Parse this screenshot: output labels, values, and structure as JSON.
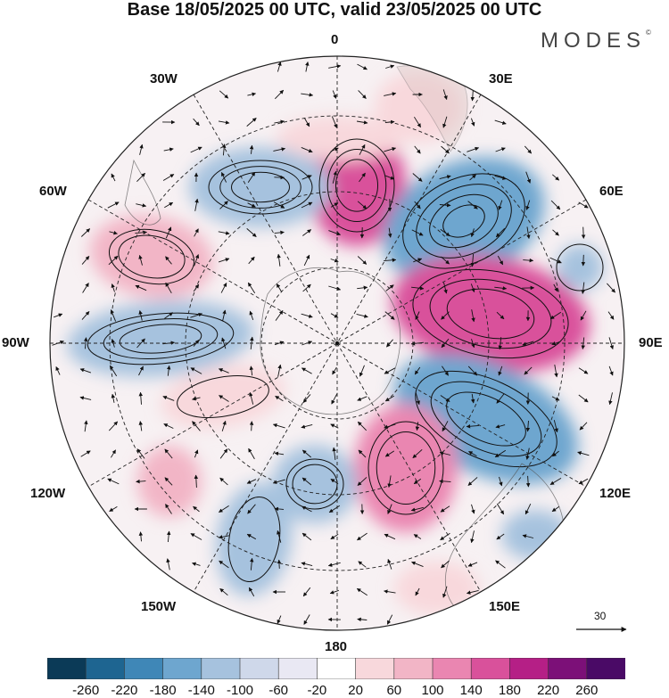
{
  "header": {
    "title": "Base 18/05/2025 00 UTC, valid 23/05/2025 00 UTC",
    "brand": "MODES",
    "brand_mark": "©"
  },
  "map": {
    "projection": "polar stereographic (south pole)",
    "longitude_labels": [
      "0",
      "30E",
      "60E",
      "90E",
      "120E",
      "150E",
      "180",
      "150W",
      "120W",
      "90W",
      "60W",
      "30W"
    ]
  },
  "reference_vector": {
    "label": "30"
  },
  "colorbar": {
    "ticks": [
      "-260",
      "-220",
      "-180",
      "-140",
      "-100",
      "-60",
      "-20",
      "20",
      "60",
      "100",
      "140",
      "180",
      "220",
      "260"
    ],
    "colors": [
      "#0b3a57",
      "#1e6591",
      "#3f87b7",
      "#6ea6cf",
      "#a6c2de",
      "#cfd8ea",
      "#e9e8f3",
      "#ffffff",
      "#f8d8dc",
      "#f2b5c6",
      "#ea86b1",
      "#d9519b",
      "#b51f86",
      "#7c1078",
      "#4a0a66"
    ]
  }
}
